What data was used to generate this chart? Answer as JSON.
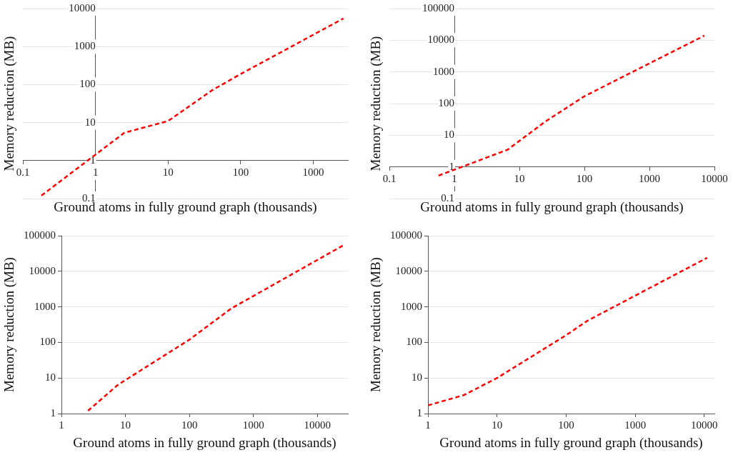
{
  "chart_data": [
    {
      "type": "line",
      "xlabel": "Ground atoms in fully ground graph (thousands)",
      "ylabel": "Memory reduction (MB)",
      "log": "xy",
      "grid": "y",
      "line_style": "dashed",
      "marker": "none",
      "color": "#ff0000",
      "xlim": [
        0.1,
        3000
      ],
      "ylim": [
        0.1,
        10000
      ],
      "xticks": [
        0.1,
        1,
        10,
        100,
        1000
      ],
      "yticks": [
        0.1,
        1,
        10,
        100,
        1000,
        10000
      ],
      "x": [
        0.18,
        2.5,
        10,
        40,
        100,
        2600
      ],
      "values": [
        0.12,
        5.4,
        11,
        70,
        190,
        5500
      ]
    },
    {
      "type": "line",
      "xlabel": "Ground atoms in fully ground graph (thousands)",
      "ylabel": "Memory reduction (MB)",
      "log": "xy",
      "grid": "y",
      "line_style": "dashed",
      "marker": "none",
      "color": "#ff0000",
      "xlim": [
        0.1,
        10000
      ],
      "ylim": [
        0.1,
        100000
      ],
      "xticks": [
        0.1,
        1,
        10,
        100,
        1000,
        10000
      ],
      "yticks": [
        0.1,
        1,
        10,
        100,
        1000,
        10000,
        100000
      ],
      "x": [
        0.57,
        6.6,
        25,
        100,
        7000
      ],
      "values": [
        0.53,
        3.5,
        27,
        170,
        14000
      ]
    },
    {
      "type": "line",
      "xlabel": "Ground atoms in fully ground graph (thousands)",
      "ylabel": "Memory reduction (MB)",
      "log": "xy",
      "grid": "y",
      "line_style": "dashed",
      "marker": "none",
      "color": "#ff0000",
      "xlim": [
        1,
        30000
      ],
      "ylim": [
        1,
        100000
      ],
      "xticks": [
        1,
        10,
        100,
        1000,
        10000
      ],
      "yticks": [
        1,
        10,
        100,
        1000,
        10000,
        100000
      ],
      "x": [
        2.6,
        7.6,
        100,
        450,
        26000
      ],
      "values": [
        1.2,
        6.4,
        120,
        900,
        55000
      ]
    },
    {
      "type": "line",
      "xlabel": "Ground atoms in fully ground graph (thousands)",
      "ylabel": "Memory reduction (MB)",
      "log": "xy",
      "grid": "y",
      "line_style": "dashed",
      "marker": "none",
      "color": "#ff0000",
      "xlim": [
        1,
        14000
      ],
      "ylim": [
        1,
        100000
      ],
      "xticks": [
        1,
        10,
        100,
        1000,
        10000
      ],
      "yticks": [
        1,
        10,
        100,
        1000,
        10000,
        100000
      ],
      "x": [
        1,
        3.3,
        10,
        100,
        200,
        11000
      ],
      "values": [
        1.7,
        3.3,
        10,
        160,
        400,
        24000
      ]
    }
  ]
}
